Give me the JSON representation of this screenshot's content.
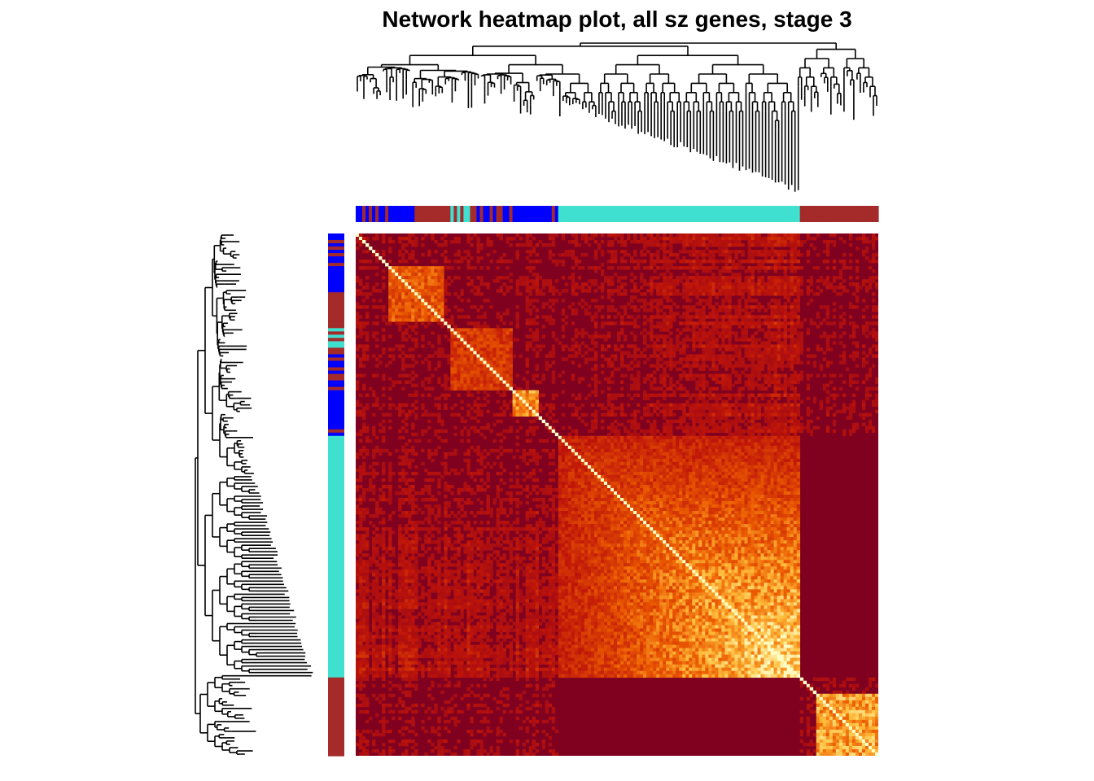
{
  "title": "Network heatmap plot, all sz genes, stage  3",
  "colors": {
    "blue_module": "#0000ff",
    "brown_module": "#a52a2a",
    "turquoise_module": "#40e0d0",
    "heat_low": "#800020",
    "heat_mid": "#e04000",
    "heat_high": "#fff8b0",
    "heat_max": "#ffffc8",
    "dendrogram": "#000000"
  },
  "chart_data": {
    "type": "heatmap",
    "title": "Network heatmap plot, all sz genes, stage  3",
    "xlabel": "",
    "ylabel": "",
    "legend": "none",
    "grid": false,
    "modules": [
      {
        "color": "blue",
        "fraction_start": 0.0,
        "fraction_end": 0.115
      },
      {
        "color": "brown",
        "fraction_start": 0.115,
        "fraction_end": 0.18
      },
      {
        "color": "mixed",
        "fraction_start": 0.18,
        "fraction_end": 0.29
      },
      {
        "color": "blue",
        "fraction_start": 0.29,
        "fraction_end": 0.39
      },
      {
        "color": "turquoise",
        "fraction_start": 0.39,
        "fraction_end": 0.848
      },
      {
        "color": "brown",
        "fraction_start": 0.848,
        "fraction_end": 1.0
      }
    ],
    "value_range": [
      0,
      1
    ],
    "color_scale": "low = dark red, high = light yellow",
    "diagonal_blocks_similarity": [
      {
        "module": "blue",
        "start": 0.06,
        "end": 0.17,
        "strength": 0.65
      },
      {
        "module": "brown",
        "start": 0.18,
        "end": 0.3,
        "strength": 0.55
      },
      {
        "module": "blue",
        "start": 0.29,
        "end": 0.35,
        "strength": 0.8
      },
      {
        "module": "turquoise",
        "start": 0.39,
        "end": 0.848,
        "strength": 0.95
      },
      {
        "module": "brown",
        "start": 0.88,
        "end": 1.0,
        "strength": 0.85
      }
    ]
  }
}
